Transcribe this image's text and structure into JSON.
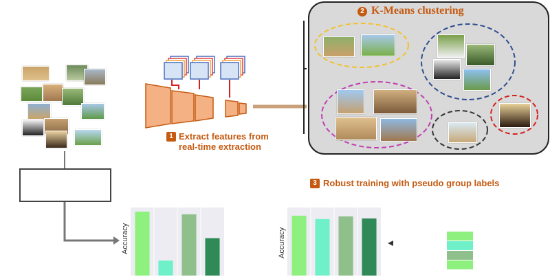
{
  "step1": {
    "number": "1",
    "label_line1": "Extract features from",
    "label_line2": "real-time extraction"
  },
  "step2": {
    "number": "2",
    "label": "K-Means clustering"
  },
  "step3": {
    "number": "3",
    "label": "Robust training with pseudo group labels"
  },
  "charts": [
    {
      "ylabel": "Accuracy"
    },
    {
      "ylabel": "Accuracy"
    }
  ],
  "colors": {
    "accent": "#c55a11",
    "encoder": "#f4b183",
    "cluster_yellow": "#f2c12e",
    "cluster_blue": "#2f4d8f",
    "cluster_magenta": "#c03fb3",
    "cluster_dark": "#333333",
    "cluster_red": "#d62020"
  },
  "chart_data": [
    {
      "type": "bar",
      "categories": [
        "",
        "",
        "",
        ""
      ],
      "values": [
        0.94,
        0.22,
        0.9,
        0.55
      ],
      "colors": [
        "#8ef07f",
        "#6ff0c8",
        "#8fbf8a",
        "#2f8a57"
      ],
      "ylabel": "Accuracy",
      "ylim": [
        0,
        1
      ]
    },
    {
      "type": "bar",
      "categories": [
        "",
        "",
        "",
        ""
      ],
      "values": [
        0.88,
        0.83,
        0.87,
        0.84
      ],
      "colors": [
        "#8ef07f",
        "#6ff0c8",
        "#8fbf8a",
        "#2f8a57"
      ],
      "ylabel": "Accuracy",
      "ylim": [
        0,
        1
      ]
    }
  ],
  "legend_swatches": [
    "#8ef07f",
    "#6ff0c8",
    "#8fbf8a",
    "#8ef07f"
  ]
}
